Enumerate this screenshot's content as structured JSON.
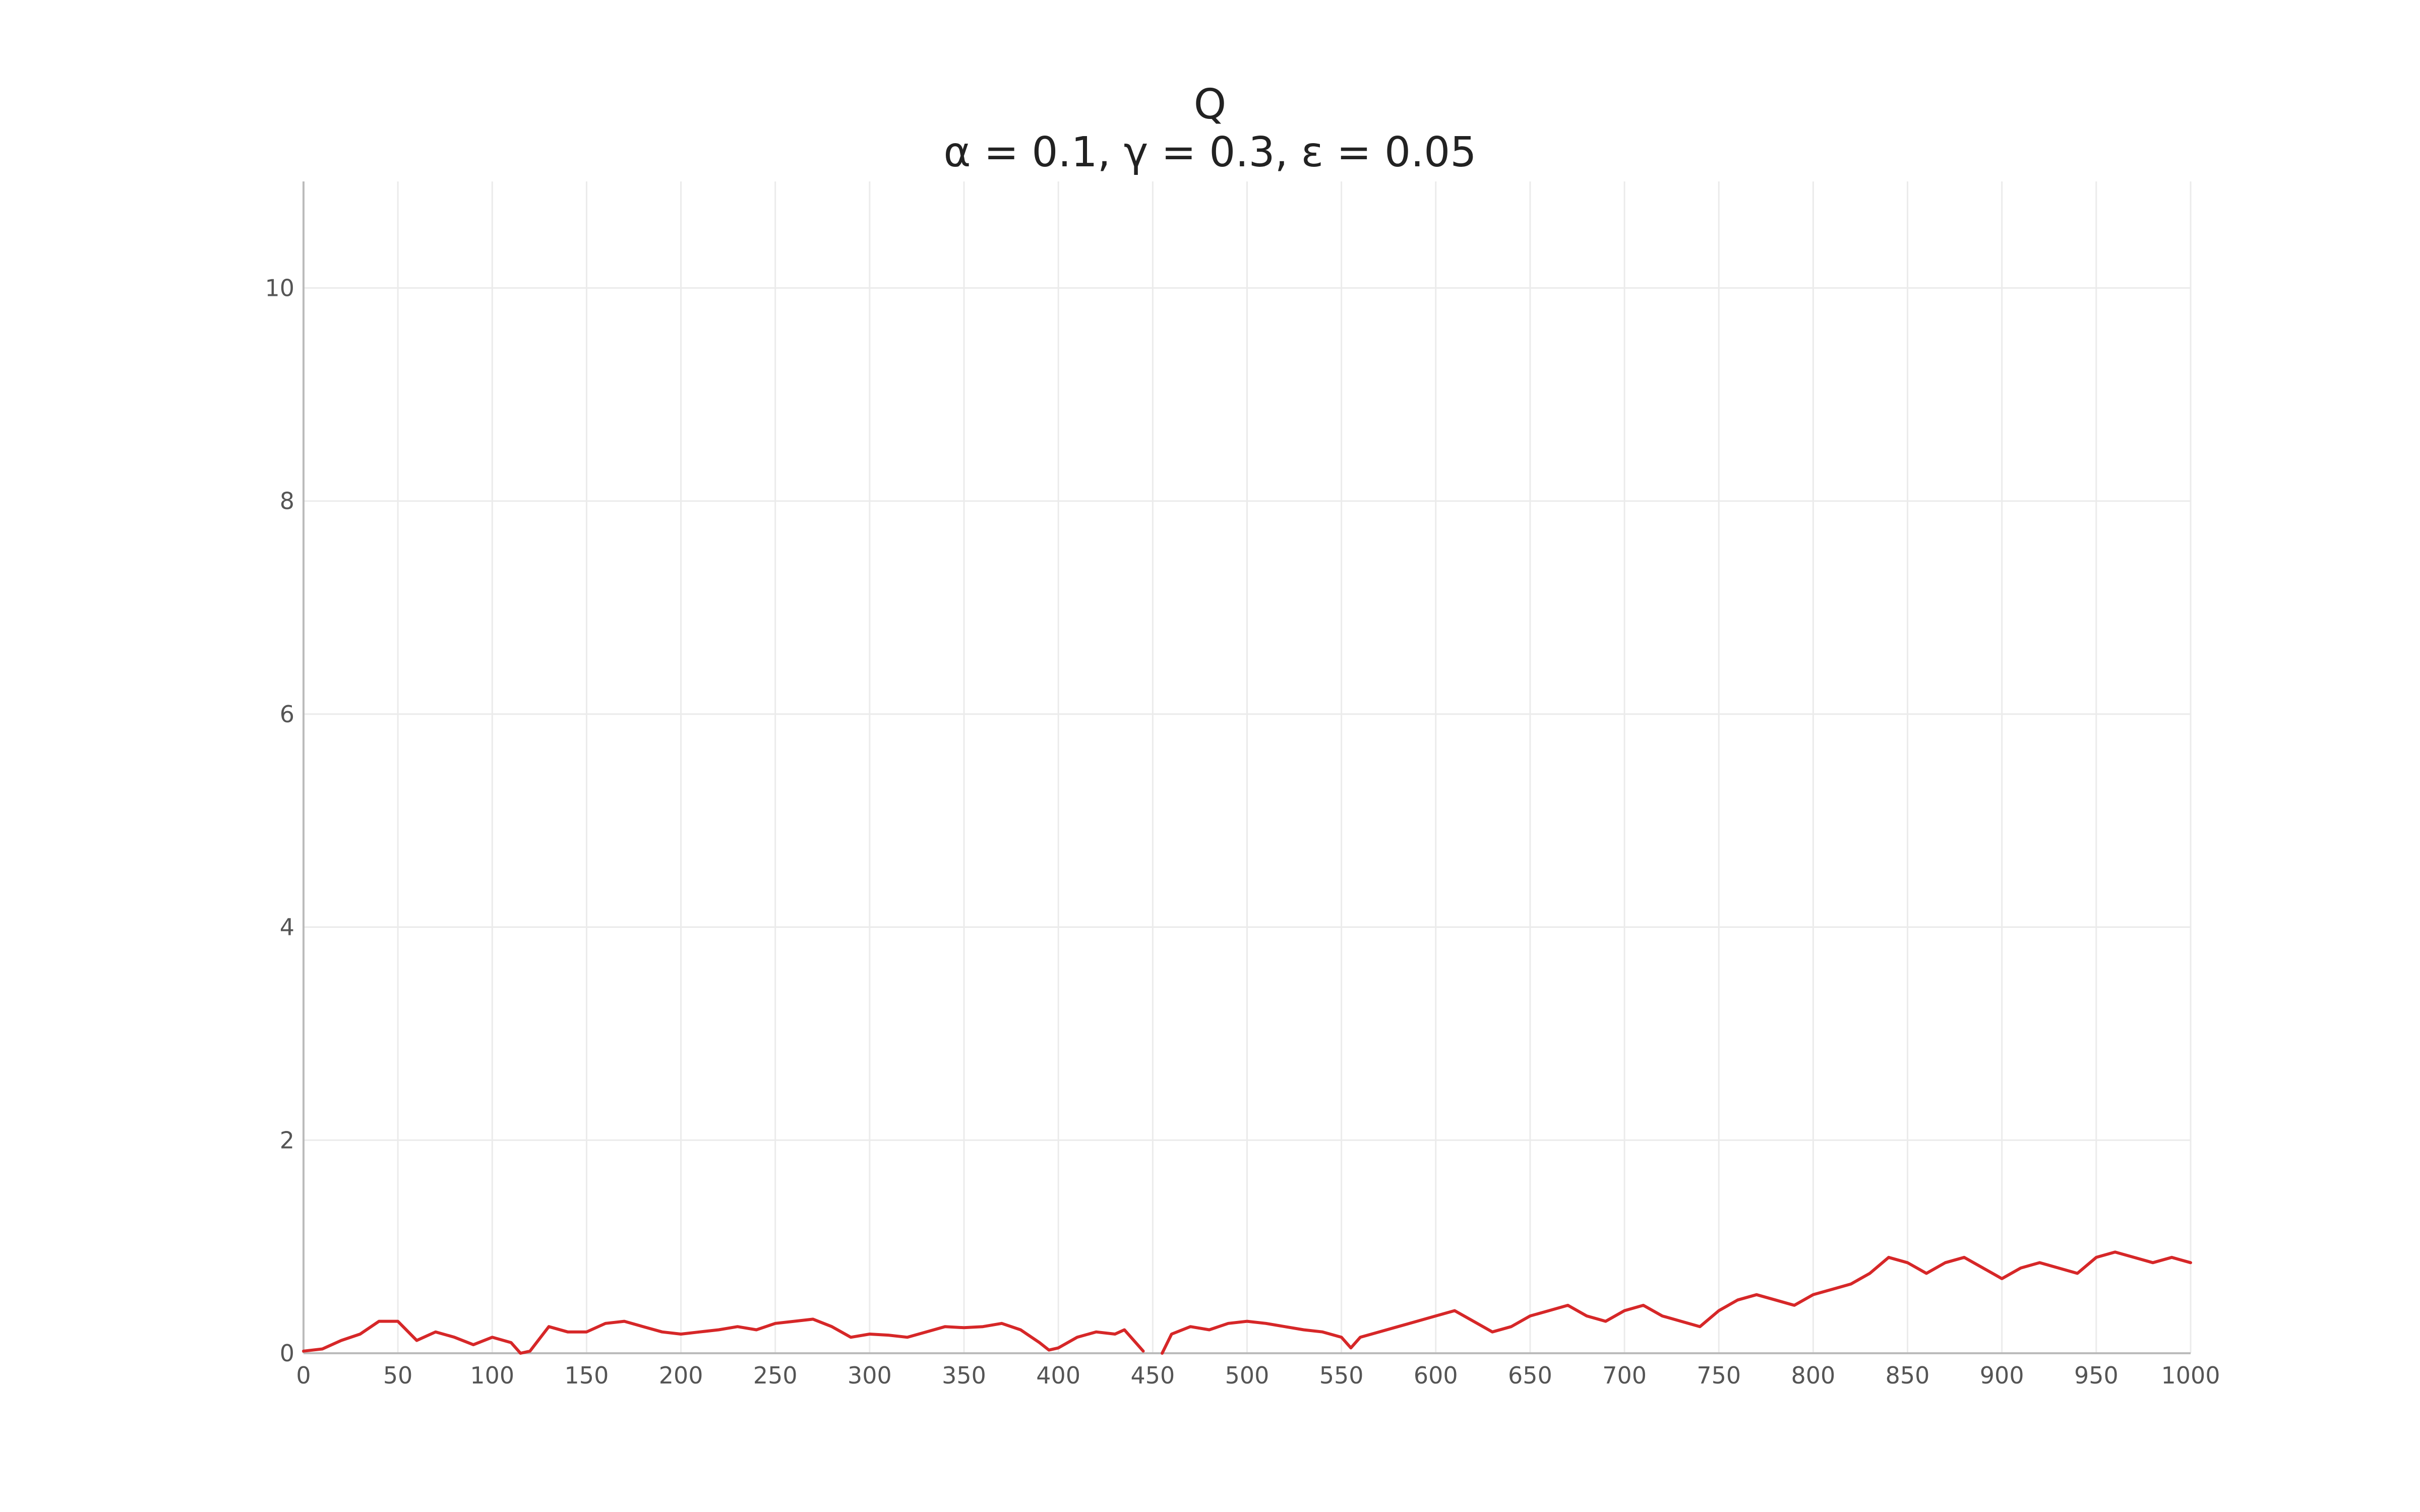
{
  "chart_data": {
    "type": "line",
    "title": "Q",
    "subtitle": "α = 0.1, γ = 0.3, ε = 0.05",
    "xlabel": "",
    "ylabel": "",
    "xlim": [
      0,
      1000
    ],
    "ylim": [
      0,
      11
    ],
    "x_ticks": [
      0,
      50,
      100,
      150,
      200,
      250,
      300,
      350,
      400,
      450,
      500,
      550,
      600,
      650,
      700,
      750,
      800,
      850,
      900,
      950,
      1000
    ],
    "y_ticks": [
      0,
      2,
      4,
      6,
      8,
      10
    ],
    "grid": true,
    "series": [
      {
        "color": "#d62728",
        "x": [
          0,
          10,
          20,
          30,
          40,
          50,
          60,
          70,
          80,
          90,
          100,
          110,
          115,
          120,
          130,
          140,
          150,
          160,
          170,
          180,
          190,
          200,
          210,
          220,
          230,
          240,
          250,
          260,
          270,
          280,
          290,
          300,
          310,
          320,
          330,
          340,
          350,
          360,
          370,
          380,
          390,
          395,
          400,
          410,
          420,
          430,
          435,
          440,
          445,
          450,
          455,
          460,
          470,
          480,
          490,
          500,
          510,
          520,
          530,
          540,
          550,
          555,
          560,
          570,
          580,
          590,
          600,
          610,
          620,
          630,
          640,
          650,
          660,
          670,
          680,
          690,
          700,
          710,
          720,
          730,
          740,
          750,
          760,
          770,
          780,
          790,
          800,
          810,
          820,
          830,
          840,
          850,
          860,
          870,
          880,
          890,
          900,
          910,
          920,
          930,
          940,
          950,
          960,
          970,
          980,
          990,
          1000
        ],
        "y": [
          0.02,
          0.04,
          0.12,
          0.18,
          0.3,
          0.3,
          0.12,
          0.2,
          0.15,
          0.08,
          0.15,
          0.1,
          0.0,
          0.02,
          0.25,
          0.2,
          0.2,
          0.28,
          0.3,
          0.25,
          0.2,
          0.18,
          0.2,
          0.22,
          0.25,
          0.22,
          0.28,
          0.3,
          0.32,
          0.25,
          0.15,
          0.18,
          0.17,
          0.15,
          0.2,
          0.25,
          0.24,
          0.25,
          0.28,
          0.22,
          0.1,
          0.03,
          0.05,
          0.15,
          0.2,
          0.18,
          0.22,
          0.12,
          0.02,
          null,
          0.0,
          0.18,
          0.25,
          0.22,
          0.28,
          0.3,
          0.28,
          0.25,
          0.22,
          0.2,
          0.15,
          0.05,
          0.15,
          0.2,
          0.25,
          0.3,
          0.35,
          0.4,
          0.3,
          0.2,
          0.25,
          0.35,
          0.4,
          0.45,
          0.35,
          0.3,
          0.4,
          0.45,
          0.35,
          0.3,
          0.25,
          0.4,
          0.5,
          0.55,
          0.5,
          0.45,
          0.55,
          0.6,
          0.65,
          0.75,
          0.9,
          0.85,
          0.75,
          0.85,
          0.9,
          0.8,
          0.7,
          0.8,
          0.85,
          0.8,
          0.75,
          0.9,
          0.95,
          0.9,
          0.85,
          0.9,
          0.85
        ]
      }
    ]
  }
}
